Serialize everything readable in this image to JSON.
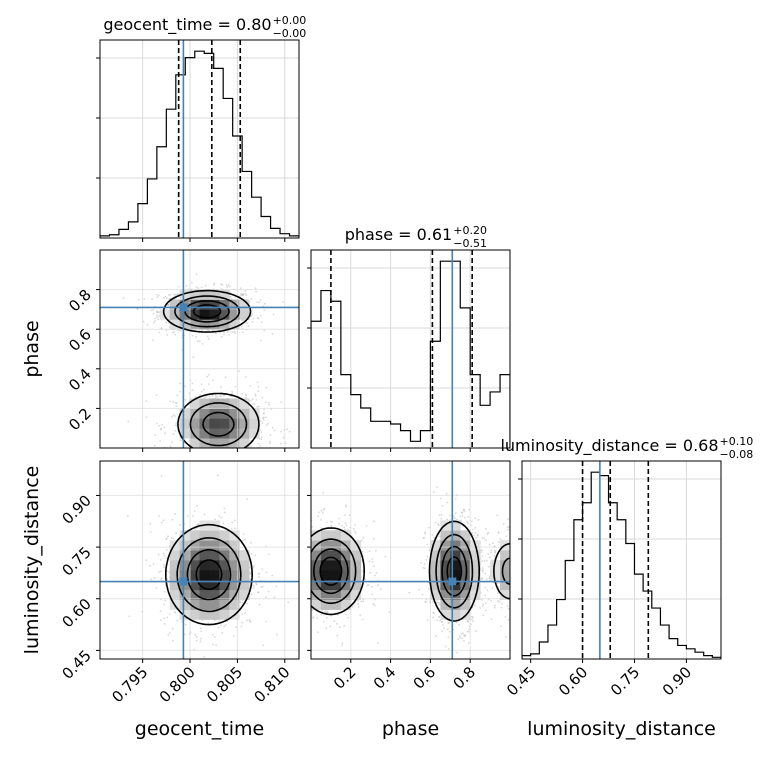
{
  "chart_data": {
    "type": "corner",
    "parameters": [
      "geocent_time",
      "phase",
      "luminosity_distance"
    ],
    "diagonal_titles": [
      {
        "param": "geocent_time",
        "label": "geocent_time = 0.80",
        "sup": "+0.00",
        "sub": "−0.00"
      },
      {
        "param": "phase",
        "label": "phase = 0.61",
        "sup": "+0.20",
        "sub": "−0.51"
      },
      {
        "param": "luminosity_distance",
        "label": "luminosity_distance = 0.68",
        "sup": "+0.10",
        "sub": "−0.08"
      }
    ],
    "axes": {
      "geocent_time": {
        "range": [
          0.7905,
          0.8115
        ],
        "ticks": [
          "0.795",
          "0.800",
          "0.805",
          "0.810"
        ],
        "tick_values": [
          0.795,
          0.8,
          0.805,
          0.81
        ]
      },
      "phase": {
        "range": [
          0.0,
          1.0
        ],
        "ticks": [
          "0.2",
          "0.4",
          "0.6",
          "0.8"
        ],
        "tick_values": [
          0.2,
          0.4,
          0.6,
          0.8
        ]
      },
      "luminosity_distance": {
        "range": [
          0.425,
          1.0
        ],
        "ticks": [
          "0.45",
          "0.60",
          "0.75",
          "0.90"
        ],
        "tick_values": [
          0.45,
          0.6,
          0.75,
          0.9
        ]
      }
    },
    "injected_values": {
      "geocent_time": 0.7993,
      "phase": 0.71,
      "luminosity_distance": 0.65
    },
    "quantile_lines": {
      "geocent_time": [
        0.7988,
        0.8023,
        0.8053
      ],
      "phase": [
        0.1,
        0.61,
        0.81
      ],
      "luminosity_distance": [
        0.6,
        0.68,
        0.79
      ]
    },
    "histograms": {
      "geocent_time": {
        "bin_edges": [
          0.7905,
          0.7915,
          0.7925,
          0.7935,
          0.7945,
          0.7955,
          0.7965,
          0.7975,
          0.7985,
          0.7995,
          0.8005,
          0.8015,
          0.8025,
          0.8035,
          0.8045,
          0.8055,
          0.8065,
          0.8075,
          0.8085,
          0.8095,
          0.8105,
          0.8115
        ],
        "counts": [
          2,
          3,
          8,
          15,
          32,
          55,
          85,
          120,
          152,
          168,
          174,
          172,
          158,
          130,
          95,
          62,
          38,
          20,
          9,
          4,
          2
        ]
      },
      "phase": {
        "bin_edges": [
          0.0,
          0.05,
          0.1,
          0.15,
          0.2,
          0.25,
          0.3,
          0.35,
          0.4,
          0.45,
          0.5,
          0.55,
          0.6,
          0.65,
          0.7,
          0.75,
          0.8,
          0.85,
          0.9,
          0.95,
          1.0
        ],
        "counts": [
          95,
          118,
          110,
          55,
          40,
          30,
          20,
          20,
          18,
          13,
          5,
          13,
          80,
          140,
          140,
          105,
          55,
          32,
          42,
          55
        ]
      },
      "luminosity_distance": {
        "bin_edges": [
          0.425,
          0.45,
          0.475,
          0.5,
          0.525,
          0.55,
          0.575,
          0.6,
          0.625,
          0.65,
          0.675,
          0.7,
          0.725,
          0.75,
          0.775,
          0.8,
          0.825,
          0.85,
          0.875,
          0.9,
          0.925,
          0.95,
          0.975,
          1.0
        ],
        "counts": [
          2,
          3,
          10,
          20,
          35,
          58,
          82,
          92,
          110,
          108,
          92,
          82,
          68,
          50,
          40,
          30,
          20,
          12,
          8,
          6,
          4,
          2,
          1
        ]
      }
    },
    "density_modes": [
      {
        "x_param": "geocent_time",
        "y_param": "phase",
        "modes": [
          {
            "x": 0.8018,
            "y": 0.69,
            "sx": 0.0022,
            "sy": 0.05,
            "w": 1.0
          },
          {
            "x": 0.803,
            "y": 0.12,
            "sx": 0.0022,
            "sy": 0.08,
            "w": 0.75
          }
        ]
      },
      {
        "x_param": "geocent_time",
        "y_param": "luminosity_distance",
        "modes": [
          {
            "x": 0.802,
            "y": 0.67,
            "sx": 0.0022,
            "sy": 0.07,
            "w": 1.0
          }
        ]
      },
      {
        "x_param": "phase",
        "y_param": "luminosity_distance",
        "modes": [
          {
            "x": 0.1,
            "y": 0.68,
            "sx": 0.08,
            "sy": 0.06,
            "w": 1.0
          },
          {
            "x": 0.72,
            "y": 0.68,
            "sx": 0.06,
            "sy": 0.07,
            "w": 0.95
          },
          {
            "x": 1.0,
            "y": 0.68,
            "sx": 0.05,
            "sy": 0.05,
            "w": 0.4
          }
        ]
      }
    ],
    "grid": true,
    "colors": {
      "truth": "#4682b4",
      "hist": "#000000",
      "contour": "#000000",
      "samples": "#b4b4b4",
      "grid": "#d9d9d9"
    }
  }
}
